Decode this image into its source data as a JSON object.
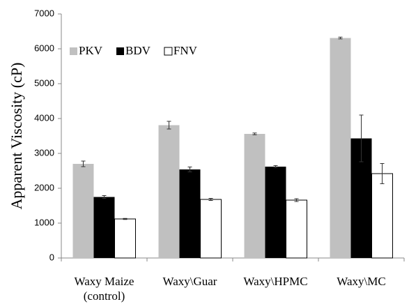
{
  "chart_data": {
    "type": "bar",
    "y_label": "Apparent Viscosity (cP)",
    "categories": [
      "Waxy Maize (control)",
      "Waxy\\Guar",
      "Waxy\\HPMC",
      "Waxy\\MC"
    ],
    "series": [
      {
        "name": "PKV",
        "color": "#c0c0c0",
        "values": [
          2700,
          3810,
          3560,
          6310
        ],
        "errors": [
          80,
          110,
          25,
          25
        ]
      },
      {
        "name": "BDV",
        "color": "#000000",
        "values": [
          1750,
          2540,
          2620,
          3430
        ],
        "errors": [
          40,
          70,
          30,
          670
        ]
      },
      {
        "name": "FNV",
        "color": "#ffffff",
        "values": [
          1120,
          1680,
          1660,
          2420
        ],
        "errors": [
          15,
          30,
          40,
          290
        ]
      }
    ],
    "ylim": [
      0,
      7000
    ],
    "yticks": [
      0,
      1000,
      2000,
      3000,
      4000,
      5000,
      6000,
      7000
    ],
    "legend": "top-left"
  }
}
